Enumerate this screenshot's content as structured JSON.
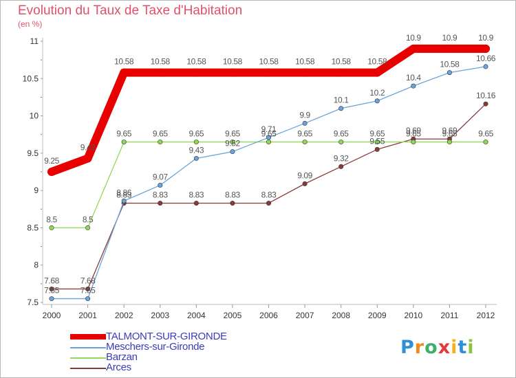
{
  "title": "Evolution du Taux de Taxe d'Habitation",
  "unit": "(en %)",
  "logo": {
    "text": "Proxiti",
    "letter_colors": [
      "#2f8fd8",
      "#f08a1a",
      "#3ab06a",
      "#e23a3a",
      "#f0b41a",
      "#2f8fd8",
      "#8ac43a"
    ]
  },
  "chart_data": {
    "type": "line",
    "title": "Evolution du Taux de Taxe d'Habitation",
    "ylabel": "(en %)",
    "xlabel": "",
    "x": [
      "2000",
      "2001",
      "2002",
      "2003",
      "2004",
      "2005",
      "2006",
      "2007",
      "2008",
      "2009",
      "2010",
      "2011",
      "2012"
    ],
    "ylim": [
      7.5,
      11
    ],
    "yticks": [
      7.5,
      8,
      8.5,
      9,
      9.5,
      10,
      10.5,
      11
    ],
    "ytick_labels": [
      "7.5",
      "8",
      "8.5",
      "9",
      "9.5",
      "10",
      "10.5",
      "11"
    ],
    "grid": false,
    "legend_position": "bottom-left",
    "series": [
      {
        "name": "TALMONT-SUR-GIRONDE",
        "color": "#e80000",
        "values": [
          9.25,
          9.43,
          10.58,
          10.58,
          10.58,
          10.58,
          10.58,
          10.58,
          10.58,
          10.58,
          10.9,
          10.9,
          10.9
        ],
        "labels": [
          "9.25",
          "9.43",
          "10.58",
          "10.58",
          "10.58",
          "10.58",
          "10.58",
          "10.58",
          "10.58",
          "10.58",
          "10.9",
          "10.9",
          "10.9"
        ]
      },
      {
        "name": "Meschers-sur-Gironde",
        "color": "#6aa4d8",
        "values": [
          7.55,
          7.55,
          8.86,
          9.07,
          9.43,
          9.52,
          9.71,
          9.9,
          10.1,
          10.2,
          10.4,
          10.58,
          10.66
        ],
        "labels": [
          "7.55",
          "7.55",
          "8.86",
          "9.07",
          "9.43",
          "9.52",
          "9.71",
          "9.9",
          "10.1",
          "10.2",
          "10.4",
          "10.58",
          "10.66"
        ]
      },
      {
        "name": "Barzan",
        "color": "#8fd85a",
        "values": [
          8.5,
          8.5,
          9.65,
          9.65,
          9.65,
          9.65,
          9.65,
          9.65,
          9.65,
          9.65,
          9.65,
          9.65,
          9.65
        ],
        "labels": [
          "8.5",
          "8.5",
          "9.65",
          "9.65",
          "9.65",
          "9.65",
          "9.65",
          "9.65",
          "9.65",
          "9.65",
          "9.65",
          "9.65",
          "9.65"
        ]
      },
      {
        "name": "Arces",
        "color": "#8b3a3a",
        "values": [
          7.68,
          7.68,
          8.83,
          8.83,
          8.83,
          8.83,
          8.83,
          9.09,
          9.32,
          9.55,
          9.69,
          9.69,
          10.16
        ],
        "labels": [
          "7.68",
          "7.68",
          "8.83",
          "8.83",
          "8.83",
          "8.83",
          "8.83",
          "9.09",
          "9.32",
          "9.55",
          "9.69",
          "9.69",
          "10.16"
        ]
      }
    ]
  }
}
